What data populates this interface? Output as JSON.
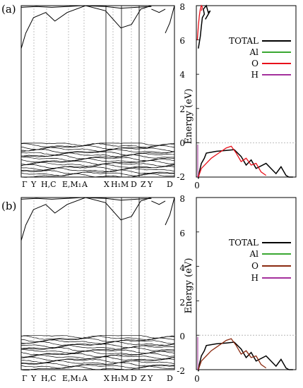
{
  "chart_data": [
    {
      "panel_label": "(a)",
      "type": "line",
      "ylabel": "Energy (eV)",
      "ylim": [
        -2,
        8
      ],
      "yticks": [
        "8",
        "6",
        "4",
        "2",
        "0",
        "-2"
      ],
      "kpath_labels": [
        "Γ",
        "Y",
        "H,C",
        "E,M₁",
        "A",
        "X",
        "H₁",
        "M",
        "D",
        "Z",
        "Y",
        "D"
      ],
      "dos_xlabel": "0",
      "legend": [
        {
          "name": "TOTAL",
          "color": "#000000"
        },
        {
          "name": "Al",
          "color": "#3aa832"
        },
        {
          "name": "O",
          "color": "#e8101a"
        },
        {
          "name": "H",
          "color": "#a4309c"
        }
      ],
      "series": [
        {
          "name": "TOTAL",
          "x": [
            0.02,
            0.03,
            0.05,
            0.08,
            0.1,
            0.2,
            0.3,
            0.38,
            0.45,
            0.5,
            0.55,
            0.6,
            0.7,
            0.8,
            0.85,
            0.9,
            0.93,
            0.97
          ],
          "y": [
            -2.1,
            -1.7,
            -1.2,
            -0.9,
            -0.6,
            -0.5,
            -0.45,
            -0.4,
            -0.8,
            -1.3,
            -1.0,
            -1.5,
            -1.2,
            -1.8,
            -1.4,
            -1.9,
            -2.0,
            -2.0
          ]
        },
        {
          "name": "TOTAL-cb",
          "x": [
            0.02,
            0.04,
            0.05,
            0.06,
            0.08,
            0.07,
            0.1,
            0.12,
            0.14,
            0.11,
            0.09
          ],
          "y": [
            5.5,
            6.2,
            6.8,
            7.3,
            7.5,
            7.8,
            8.0,
            7.6,
            7.7,
            7.4,
            7.2
          ]
        },
        {
          "name": "O",
          "x": [
            0.02,
            0.05,
            0.1,
            0.15,
            0.2,
            0.25,
            0.3,
            0.35,
            0.4,
            0.45,
            0.5,
            0.55,
            0.6,
            0.65,
            0.7
          ],
          "y": [
            -2.0,
            -1.5,
            -1.2,
            -0.9,
            -0.7,
            -0.5,
            -0.3,
            -0.2,
            -0.6,
            -1.1,
            -0.9,
            -1.3,
            -1.2,
            -1.7,
            -1.9
          ]
        },
        {
          "name": "O-cb",
          "x": [
            0.01,
            0.02,
            0.03,
            0.04,
            0.05,
            0.06,
            0.05
          ],
          "y": [
            6.0,
            6.8,
            7.4,
            7.8,
            8.0,
            7.9,
            7.7
          ]
        }
      ]
    },
    {
      "panel_label": "(b)",
      "type": "line",
      "ylabel": "Energy (eV)",
      "ylim": [
        -2,
        8
      ],
      "yticks": [
        "8",
        "6",
        "4",
        "2",
        "0",
        "-2"
      ],
      "kpath_labels": [
        "Γ",
        "Y",
        "H,C",
        "E,M₁",
        "A",
        "X",
        "H₁",
        "M",
        "D",
        "Z",
        "Y",
        "D"
      ],
      "dos_xlabel": "0",
      "legend": [
        {
          "name": "TOTAL",
          "color": "#000000"
        },
        {
          "name": "Al",
          "color": "#3aa832"
        },
        {
          "name": "O",
          "color": "#8b2a10"
        },
        {
          "name": "H",
          "color": "#a4309c"
        }
      ],
      "series": [
        {
          "name": "TOTAL",
          "x": [
            0.02,
            0.03,
            0.05,
            0.08,
            0.1,
            0.2,
            0.3,
            0.38,
            0.45,
            0.5,
            0.55,
            0.6,
            0.7,
            0.8,
            0.85,
            0.9,
            0.93,
            0.97
          ],
          "y": [
            -2.1,
            -1.7,
            -1.2,
            -0.9,
            -0.6,
            -0.5,
            -0.45,
            -0.4,
            -0.8,
            -1.3,
            -1.0,
            -1.5,
            -1.2,
            -1.8,
            -1.4,
            -1.9,
            -2.0,
            -2.0
          ]
        },
        {
          "name": "O",
          "x": [
            0.02,
            0.05,
            0.1,
            0.15,
            0.2,
            0.25,
            0.3,
            0.35,
            0.4,
            0.45,
            0.5,
            0.55,
            0.6,
            0.65,
            0.7
          ],
          "y": [
            -2.0,
            -1.5,
            -1.2,
            -0.9,
            -0.7,
            -0.5,
            -0.3,
            -0.2,
            -0.6,
            -1.1,
            -0.9,
            -1.3,
            -1.2,
            -1.7,
            -1.9
          ]
        }
      ]
    }
  ]
}
